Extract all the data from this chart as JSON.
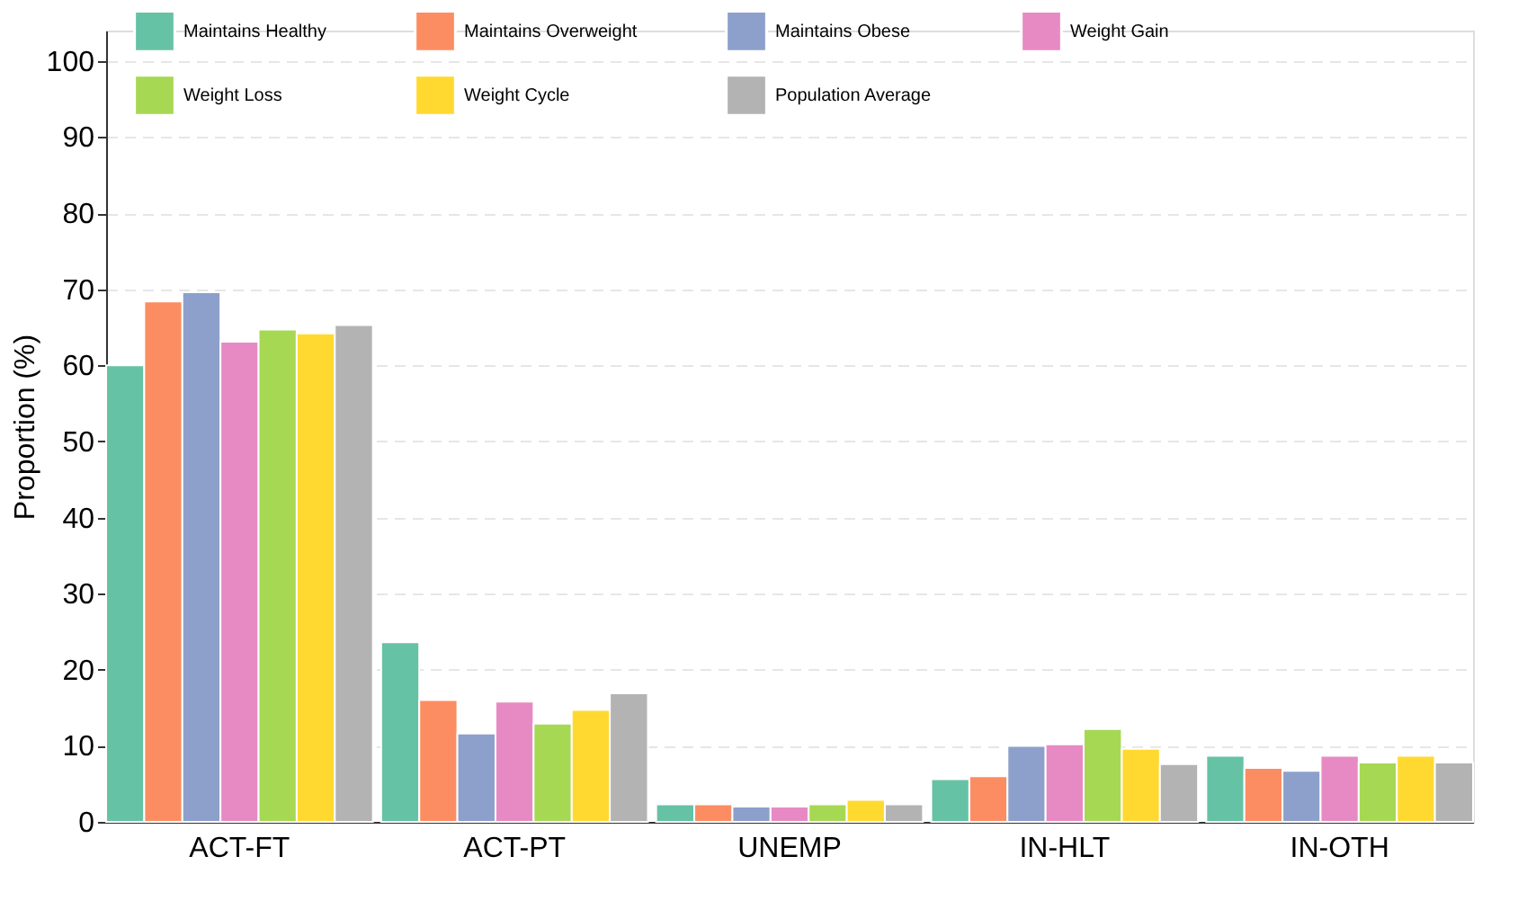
{
  "chart_data": {
    "type": "bar",
    "ylabel": "Proportion (%)",
    "categories": [
      "ACT-FT",
      "ACT-PT",
      "UNEMP",
      "IN-HLT",
      "IN-OTH"
    ],
    "series": [
      {
        "name": "Maintains Healthy",
        "color": "#66c2a5",
        "values": [
          60.0,
          23.6,
          2.3,
          5.6,
          8.7
        ]
      },
      {
        "name": "Maintains Overweight",
        "color": "#fc8d62",
        "values": [
          68.4,
          16.0,
          2.3,
          6.0,
          7.1
        ]
      },
      {
        "name": "Maintains Obese",
        "color": "#8da0cb",
        "values": [
          69.6,
          11.6,
          2.0,
          10.0,
          6.7
        ]
      },
      {
        "name": "Weight Gain",
        "color": "#e78ac3",
        "values": [
          63.1,
          15.8,
          2.0,
          10.2,
          8.7
        ]
      },
      {
        "name": "Weight Loss",
        "color": "#a6d854",
        "values": [
          64.7,
          12.9,
          2.3,
          12.2,
          7.8
        ]
      },
      {
        "name": "Weight Cycle",
        "color": "#ffd92f",
        "values": [
          64.2,
          14.7,
          2.9,
          9.6,
          8.7
        ]
      },
      {
        "name": "Population Average",
        "color": "#b3b3b3",
        "values": [
          65.3,
          16.9,
          2.3,
          7.6,
          7.8
        ]
      }
    ],
    "ylim": [
      0,
      104
    ],
    "yticks": [
      0,
      10,
      20,
      30,
      40,
      50,
      60,
      70,
      80,
      90,
      100
    ],
    "grid": "y",
    "legend": "top"
  }
}
